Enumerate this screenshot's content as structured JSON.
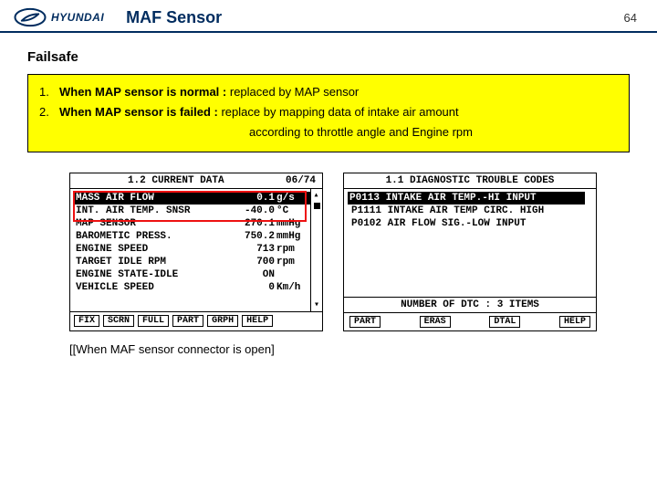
{
  "header": {
    "brand": "HYUNDAI",
    "title": "MAF Sensor",
    "page": "64"
  },
  "subheading": "Failsafe",
  "failsafe": {
    "line1_num": "1.",
    "line1_bold": "When MAP sensor is normal :",
    "line1_rest": " replaced by MAP sensor",
    "line2_num": "2.",
    "line2_bold": "When MAP sensor is failed :",
    "line2_rest": " replace by mapping data of intake air amount",
    "line3": "according to throttle angle and Engine rpm",
    "bg_color": "#ffff00"
  },
  "left_panel": {
    "title": "1.2 CURRENT DATA",
    "title_right": "06/74",
    "rows": [
      {
        "label": "MASS AIR FLOW",
        "val": "0.1",
        "unit": "g/s",
        "hi": true
      },
      {
        "label": "INT. AIR TEMP. SNSR",
        "val": "-40.0",
        "unit": "°C",
        "hi": false
      },
      {
        "label": "MAP SENSOR",
        "val": "270.1",
        "unit": "mmHg",
        "hi": false
      },
      {
        "label": "BAROMETIC PRESS.",
        "val": "750.2",
        "unit": "mmHg",
        "hi": false
      },
      {
        "label": "ENGINE SPEED",
        "val": "713",
        "unit": "rpm",
        "hi": false
      },
      {
        "label": "TARGET IDLE RPM",
        "val": "700",
        "unit": "rpm",
        "hi": false
      },
      {
        "label": "ENGINE STATE-IDLE",
        "val": "ON",
        "unit": "",
        "hi": false
      },
      {
        "label": "VEHICLE SPEED",
        "val": "0",
        "unit": "Km/h",
        "hi": false
      }
    ],
    "buttons": [
      "FIX",
      "SCRN",
      "FULL",
      "PART",
      "GRPH",
      "HELP"
    ]
  },
  "right_panel": {
    "title": "1.1 DIAGNOSTIC TROUBLE CODES",
    "rows": [
      {
        "text": "P0113 INTAKE AIR TEMP.-HI INPUT",
        "hi": true
      },
      {
        "text": "P1111 INTAKE AIR TEMP CIRC. HIGH",
        "hi": false
      },
      {
        "text": "P0102 AIR FLOW SIG.-LOW INPUT",
        "hi": false
      }
    ],
    "count_label": "NUMBER OF DTC  :  3 ITEMS",
    "buttons": [
      "PART",
      "ERAS",
      "DTAL",
      "HELP"
    ]
  },
  "caption": "[[When MAF sensor connector is open]"
}
